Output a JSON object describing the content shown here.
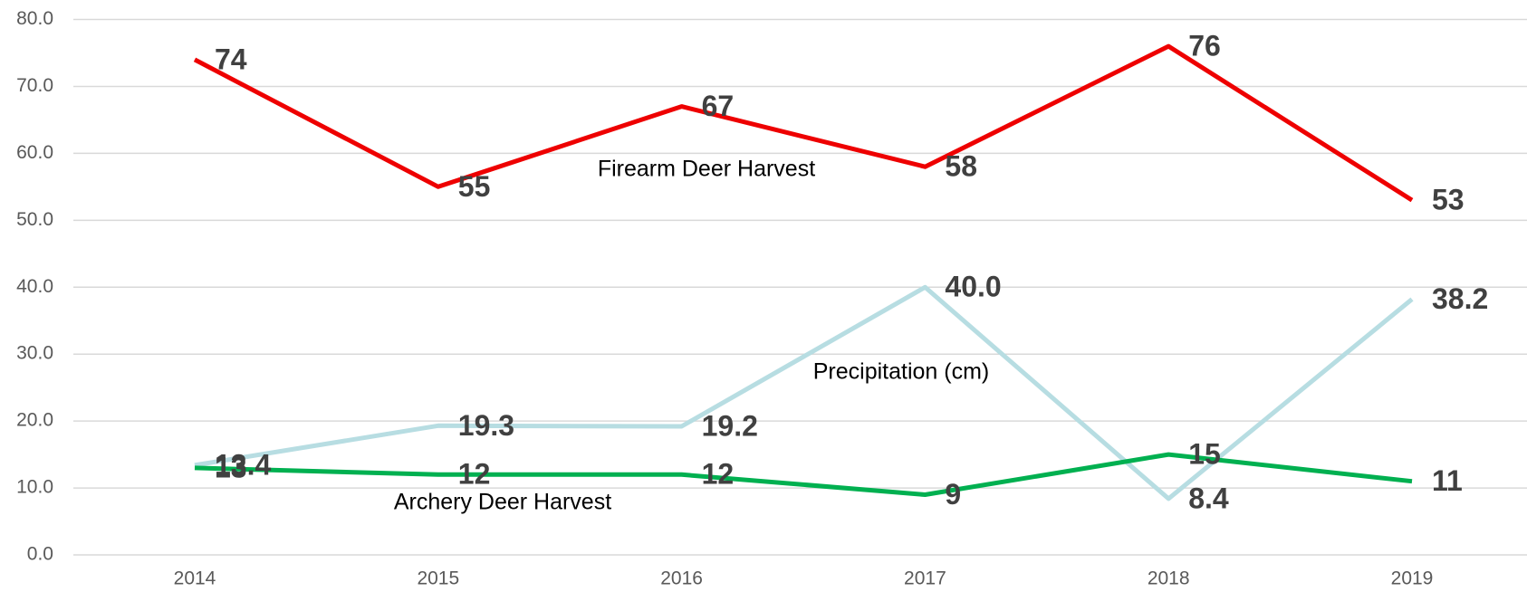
{
  "chart_data": {
    "type": "line",
    "categories": [
      "2014",
      "2015",
      "2016",
      "2017",
      "2018",
      "2019"
    ],
    "series": [
      {
        "name": "Firearm Deer Harvest",
        "color": "#ee0000",
        "values": [
          74,
          55,
          67,
          58,
          76,
          53
        ]
      },
      {
        "name": "Precipitation (cm)",
        "color": "#b7dde2",
        "values": [
          13.4,
          19.3,
          19.2,
          40.0,
          8.4,
          38.2
        ],
        "value_labels": [
          "13.4",
          "19.3",
          "19.2",
          "40.0",
          "8.4",
          "38.2"
        ]
      },
      {
        "name": "Archery Deer Harvest",
        "color": "#00b050",
        "values": [
          13,
          12,
          12,
          9,
          15,
          11
        ]
      }
    ],
    "ylim": [
      0,
      80
    ],
    "yticks": [
      {
        "value": 0,
        "label": "0.0"
      },
      {
        "value": 10,
        "label": "10.0"
      },
      {
        "value": 20,
        "label": "20.0"
      },
      {
        "value": 30,
        "label": "30.0"
      },
      {
        "value": 40,
        "label": "40.0"
      },
      {
        "value": 50,
        "label": "50.0"
      },
      {
        "value": 60,
        "label": "60.0"
      },
      {
        "value": 70,
        "label": "70.0"
      },
      {
        "value": 80,
        "label": "80.0"
      }
    ],
    "grid": true
  }
}
